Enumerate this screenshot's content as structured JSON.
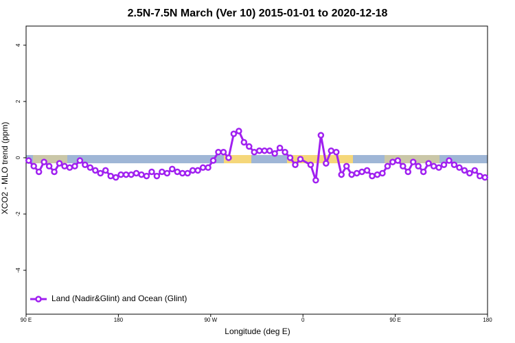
{
  "chart_data": {
    "type": "line",
    "title": "2.5N-7.5N March (Ver 10)   2015-01-01 to 2020-12-18",
    "x_label": "Longitude (deg E)",
    "y_label": "XCO2 - MLO trend (ppm)",
    "xlim": [
      90,
      540
    ],
    "ylim": [
      -5.56,
      4.68
    ],
    "xticks": [
      {
        "value": 90,
        "label": "90 E"
      },
      {
        "value": 180,
        "label": "180"
      },
      {
        "value": 270,
        "label": "90 W"
      },
      {
        "value": 360,
        "label": "0"
      },
      {
        "value": 450,
        "label": "90 E"
      },
      {
        "value": 540,
        "label": "180"
      }
    ],
    "yticks": [
      -4,
      -2,
      0,
      2,
      4
    ],
    "legend": "bottom-left",
    "series": [
      {
        "name": "Land (Nadir&Glint) and Ocean (Glint)",
        "color": "#a020f0",
        "x": [
          92.5,
          97.5,
          102.5,
          107.5,
          112.5,
          117.5,
          122.5,
          127.5,
          132.5,
          137.5,
          142.5,
          147.5,
          152.5,
          157.5,
          162.5,
          167.5,
          172.5,
          177.5,
          182.5,
          187.5,
          192.5,
          197.5,
          202.5,
          207.5,
          212.5,
          217.5,
          222.5,
          227.5,
          232.5,
          237.5,
          242.5,
          247.5,
          252.5,
          257.5,
          262.5,
          267.5,
          272.5,
          277.5,
          282.5,
          287.5,
          292.5,
          297.5,
          302.5,
          307.5,
          312.5,
          317.5,
          322.5,
          327.5,
          332.5,
          337.5,
          342.5,
          347.5,
          352.5,
          357.5,
          367.5,
          372.5,
          377.5,
          382.5,
          387.5,
          392.5,
          397.5,
          402.5,
          407.5,
          412.5,
          417.5,
          422.5,
          427.5,
          432.5,
          437.5,
          442.5,
          447.5,
          452.5,
          457.5,
          462.5,
          467.5,
          472.5,
          477.5,
          482.5,
          487.5,
          492.5,
          497.5,
          502.5,
          507.5,
          512.5,
          517.5,
          522.5,
          527.5,
          532.5,
          537.5
        ],
        "values": [
          -0.1,
          -0.3,
          -0.5,
          -0.15,
          -0.3,
          -0.5,
          -0.2,
          -0.3,
          -0.35,
          -0.3,
          -0.1,
          -0.25,
          -0.35,
          -0.45,
          -0.55,
          -0.45,
          -0.65,
          -0.7,
          -0.6,
          -0.6,
          -0.6,
          -0.55,
          -0.6,
          -0.65,
          -0.5,
          -0.65,
          -0.5,
          -0.55,
          -0.4,
          -0.5,
          -0.55,
          -0.55,
          -0.45,
          -0.45,
          -0.35,
          -0.35,
          -0.1,
          0.2,
          0.2,
          0.0,
          0.85,
          0.95,
          0.55,
          0.4,
          0.2,
          0.25,
          0.25,
          0.25,
          0.15,
          0.35,
          0.2,
          0.0,
          -0.25,
          -0.05,
          -0.25,
          -0.8,
          0.8,
          -0.2,
          0.25,
          0.2,
          -0.6,
          -0.3,
          -0.6,
          -0.55,
          -0.5,
          -0.45,
          -0.65,
          -0.6,
          -0.55,
          -0.3,
          -0.15,
          -0.1,
          -0.3,
          -0.5,
          -0.15,
          -0.3,
          -0.5,
          -0.2,
          -0.3,
          -0.35,
          -0.25,
          -0.1,
          -0.25,
          -0.35,
          -0.45,
          -0.55,
          -0.45,
          -0.65,
          -0.7
        ]
      }
    ]
  }
}
